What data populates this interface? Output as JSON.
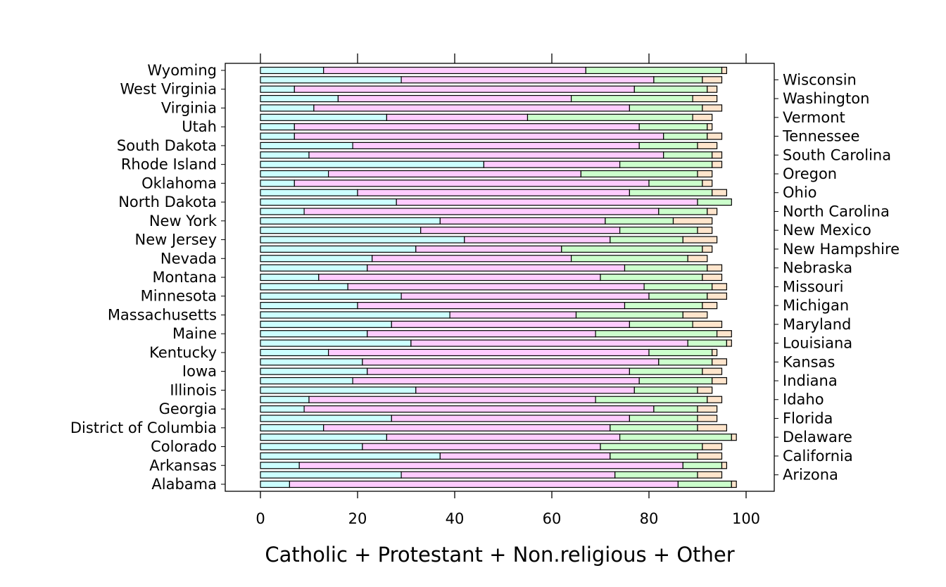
{
  "chart_data": {
    "type": "bar",
    "orientation": "horizontal",
    "stacked": true,
    "title": "",
    "xlabel": "Catholic + Protestant + Non.religious + Other",
    "ylabel": "",
    "xlim": [
      -7,
      105
    ],
    "xticks": [
      "0",
      "20",
      "40",
      "60",
      "80",
      "100"
    ],
    "tick_values": [
      0,
      20,
      40,
      60,
      80,
      100
    ],
    "categories": [
      "Alabama",
      "Arizona",
      "Arkansas",
      "California",
      "Colorado",
      "Delaware",
      "District of Columbia",
      "Florida",
      "Georgia",
      "Idaho",
      "Illinois",
      "Indiana",
      "Iowa",
      "Kansas",
      "Kentucky",
      "Louisiana",
      "Maine",
      "Maryland",
      "Massachusetts",
      "Michigan",
      "Minnesota",
      "Missouri",
      "Montana",
      "Nebraska",
      "Nevada",
      "New Hampshire",
      "New Jersey",
      "New Mexico",
      "New York",
      "North Carolina",
      "North Dakota",
      "Ohio",
      "Oklahoma",
      "Oregon",
      "Rhode Island",
      "South Carolina",
      "South Dakota",
      "Tennessee",
      "Utah",
      "Vermont",
      "Virginia",
      "Washington",
      "West Virginia",
      "Wisconsin",
      "Wyoming"
    ],
    "series": [
      {
        "name": "Catholic",
        "color": "#ccffff",
        "values": [
          6,
          29,
          8,
          37,
          21,
          26,
          13,
          27,
          9,
          10,
          32,
          19,
          22,
          21,
          14,
          31,
          22,
          27,
          39,
          20,
          29,
          18,
          12,
          22,
          23,
          32,
          42,
          33,
          37,
          9,
          28,
          20,
          7,
          14,
          46,
          10,
          19,
          7,
          7,
          26,
          11,
          16,
          7,
          29,
          13
        ]
      },
      {
        "name": "Protestant",
        "color": "#ffccff",
        "values": [
          80,
          44,
          79,
          35,
          49,
          48,
          59,
          49,
          72,
          59,
          45,
          59,
          54,
          61,
          66,
          57,
          47,
          49,
          26,
          55,
          51,
          61,
          58,
          53,
          41,
          30,
          30,
          41,
          34,
          73,
          62,
          56,
          73,
          52,
          28,
          73,
          59,
          76,
          71,
          29,
          65,
          48,
          70,
          52,
          54
        ]
      },
      {
        "name": "Non.religious",
        "color": "#ccffcc",
        "values": [
          11,
          17,
          8,
          18,
          21,
          23,
          18,
          14,
          9,
          23,
          13,
          15,
          15,
          11,
          13,
          8,
          25,
          13,
          22,
          16,
          12,
          14,
          21,
          17,
          24,
          29,
          15,
          16,
          14,
          10,
          7,
          17,
          11,
          24,
          19,
          10,
          12,
          9,
          14,
          34,
          15,
          25,
          15,
          10,
          28
        ]
      },
      {
        "name": "Other",
        "color": "#ffe5cc",
        "values": [
          1,
          5,
          1,
          5,
          4,
          1,
          6,
          4,
          4,
          3,
          3,
          3,
          4,
          3,
          1,
          1,
          3,
          6,
          5,
          3,
          4,
          3,
          4,
          3,
          4,
          2,
          7,
          3,
          8,
          2,
          0,
          3,
          2,
          3,
          2,
          2,
          4,
          3,
          1,
          4,
          4,
          5,
          2,
          4,
          1
        ]
      }
    ],
    "grid": false,
    "legend": "none"
  }
}
